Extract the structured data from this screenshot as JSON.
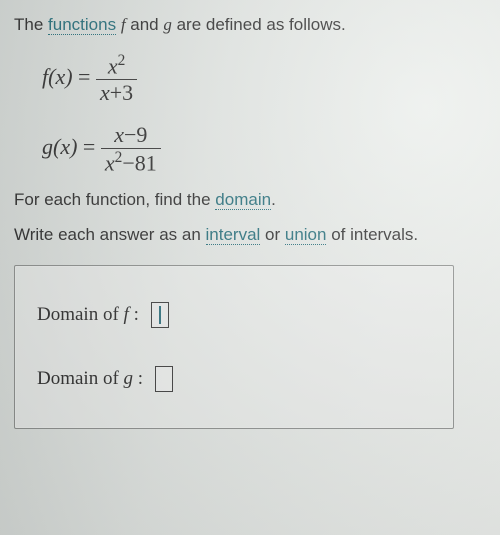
{
  "intro": {
    "prefix": "The ",
    "term_functions": "functions",
    "mid1": " ",
    "f": "f",
    "mid2": " and ",
    "g": "g",
    "suffix": " are defined as follows."
  },
  "equations": {
    "f": {
      "lhs": "f(x) ",
      "eq": " = ",
      "num_var": "x",
      "num_exp": "2",
      "den_var": "x",
      "den_op": "+",
      "den_const": "3"
    },
    "g": {
      "lhs": "g(x) ",
      "eq": " = ",
      "num_var": "x",
      "num_op": "−",
      "num_const": "9",
      "den_var": "x",
      "den_exp": "2",
      "den_op": "−",
      "den_const": "81"
    }
  },
  "instructions": {
    "line1_prefix": "For each function, find the ",
    "term_domain": "domain",
    "line1_suffix": ".",
    "line2_prefix": "Write each answer as an ",
    "term_interval": "interval",
    "line2_mid": " or ",
    "term_union": "union",
    "line2_suffix": " of intervals."
  },
  "answers": {
    "f_label_prefix": "Domain of ",
    "f_sym": "f",
    "f_label_suffix": " :",
    "g_label_prefix": "Domain of ",
    "g_sym": "g",
    "g_label_suffix": " :"
  },
  "colors": {
    "term": "#1f6b78",
    "border": "#8c8f8d",
    "text": "#2a2a2a"
  }
}
